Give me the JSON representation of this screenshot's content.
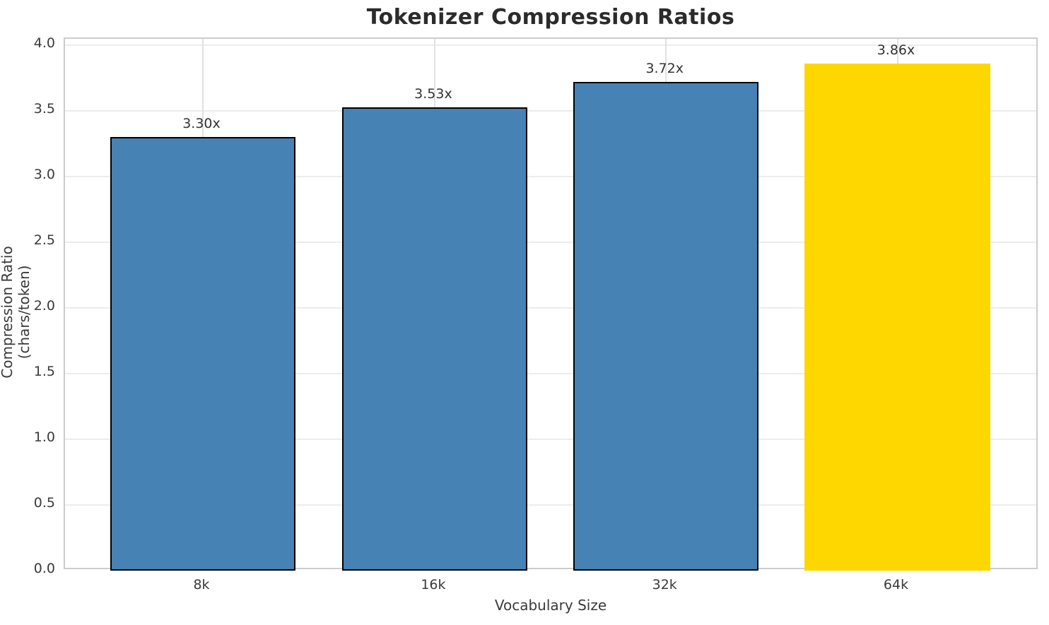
{
  "chart_data": {
    "type": "bar",
    "title": "Tokenizer Compression Ratios",
    "xlabel": "Vocabulary Size",
    "ylabel": "Compression Ratio (chars/token)",
    "categories": [
      "8k",
      "16k",
      "32k",
      "64k"
    ],
    "values": [
      3.3,
      3.53,
      3.72,
      3.86
    ],
    "bar_labels": [
      "3.30x",
      "3.53x",
      "3.72x",
      "3.86x"
    ],
    "bar_colors": [
      "#4682B4",
      "#4682B4",
      "#4682B4",
      "#FFD700"
    ],
    "bar_edge_colors": [
      "#000000",
      "#000000",
      "#000000",
      "none"
    ],
    "highlight_index": 3,
    "highlight_category": "64k",
    "ylim": [
      0.0,
      4.05
    ],
    "yticks": [
      0.0,
      0.5,
      1.0,
      1.5,
      2.0,
      2.5,
      3.0,
      3.5,
      4.0
    ],
    "ytick_labels": [
      "0.0",
      "0.5",
      "1.0",
      "1.5",
      "2.0",
      "2.5",
      "3.0",
      "3.5",
      "4.0"
    ],
    "grid": true,
    "grid_axes": "both",
    "legend": "none",
    "colors": {
      "bar_default": "#4682B4",
      "bar_highlight": "#FFD700",
      "bar_edge": "#000000",
      "spine": "#cccccc",
      "grid_h": "#ececec",
      "grid_v": "#e2e2e2",
      "title_text": "#2b2b2b",
      "tick_text": "#3a3a3a",
      "background": "#ffffff"
    }
  }
}
